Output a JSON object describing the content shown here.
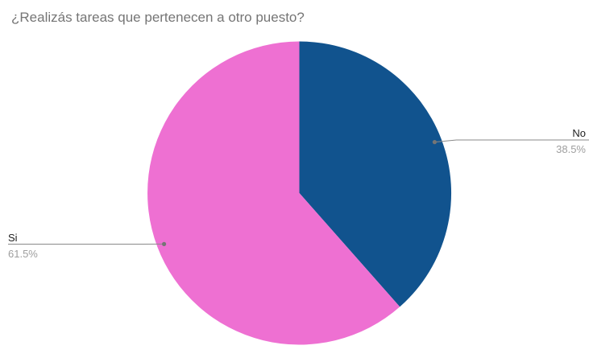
{
  "chart_data": {
    "type": "pie",
    "title": "¿Realizás tareas que pertenecen a otro puesto?",
    "slices": [
      {
        "label": "No",
        "value": 38.5,
        "pct_label": "38.5%",
        "color": "#11538E"
      },
      {
        "label": "Si",
        "value": 61.5,
        "pct_label": "61.5%",
        "color": "#EE70D2"
      }
    ],
    "start_angle_deg": 0,
    "direction": "clockwise",
    "legend_position": "labeled-callouts",
    "background": "#FFFFFF",
    "title_color": "#757575",
    "label_color": "#212121",
    "pct_color": "#9E9E9E",
    "leader_line_color": "#8A8A8A",
    "leader_dot_color": "#757575"
  }
}
